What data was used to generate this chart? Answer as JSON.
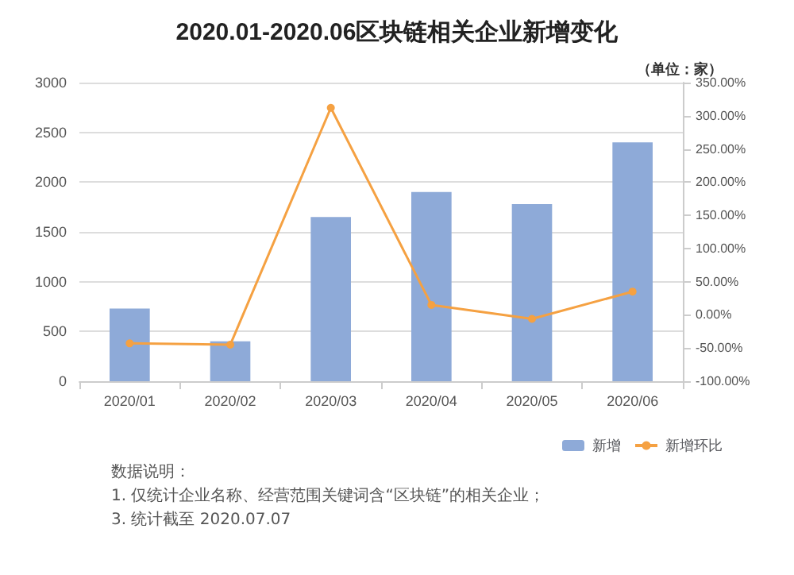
{
  "chart_data": {
    "type": "bar",
    "title": "2020.01-2020.06区块链相关企业新增变化",
    "subtitle": "（单位：家）",
    "categories": [
      "2020/01",
      "2020/02",
      "2020/03",
      "2020/04",
      "2020/05",
      "2020/06"
    ],
    "series": [
      {
        "name": "新增",
        "color": "#8eaad8",
        "values": [
          730,
          400,
          1650,
          1900,
          1780,
          2400
        ]
      },
      {
        "name": "新增环比",
        "type": "line",
        "axis": "y2",
        "color": "#f5a142",
        "values": [
          -43,
          -45,
          312,
          15,
          -6,
          35
        ]
      }
    ],
    "ylim": [
      0,
      3000
    ],
    "yticks": [
      0,
      500,
      1000,
      1500,
      2000,
      2500,
      3000
    ],
    "y2lim": [
      -100,
      350
    ],
    "y2ticks": [
      {
        "value": -100,
        "label": "-100.00%"
      },
      {
        "value": -50,
        "label": "-50.00%"
      },
      {
        "value": 0,
        "label": "0.00%"
      },
      {
        "value": 50,
        "label": "50.00%"
      },
      {
        "value": 100,
        "label": "100.00%"
      },
      {
        "value": 150,
        "label": "150.00%"
      },
      {
        "value": 200,
        "label": "200.00%"
      },
      {
        "value": 250,
        "label": "250.00%"
      },
      {
        "value": 300,
        "label": "300.00%"
      },
      {
        "value": 350,
        "label": "350.00%"
      }
    ],
    "grid": "y",
    "legend": "bottom right",
    "marker": "circle",
    "annotations": [
      "数据说明：",
      "1. 仅统计企业名称、经营范围关键词含“区块链”的相关企业；",
      "3. 统计截至 2020.07.07"
    ]
  }
}
